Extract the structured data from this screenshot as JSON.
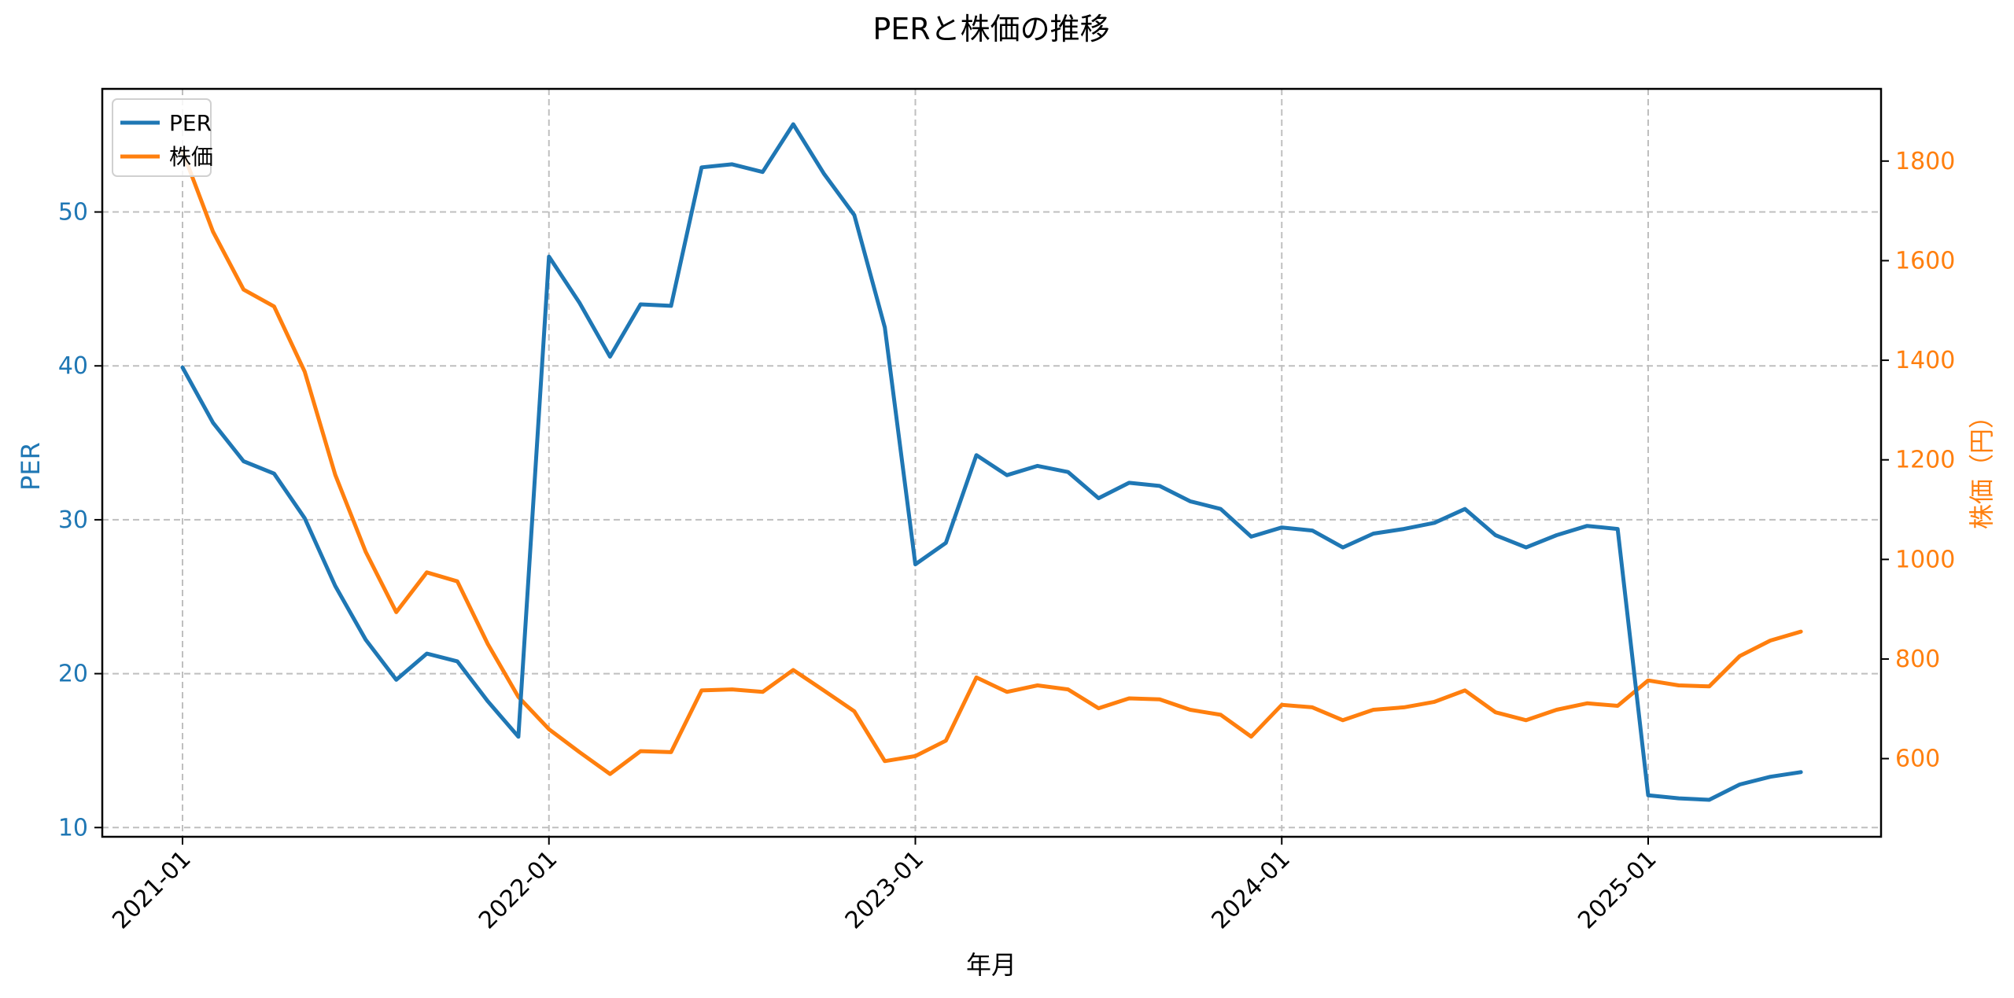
{
  "chart_data": {
    "type": "line",
    "title": "PERと株価の推移",
    "xlabel": "年月",
    "ylabel_left": "PER",
    "ylabel_right": "株価（円）",
    "x_ticks": [
      "2021-01",
      "2022-01",
      "2023-01",
      "2024-01",
      "2025-01"
    ],
    "y_left_ticks": [
      10,
      20,
      30,
      40,
      50
    ],
    "y_right_ticks": [
      600,
      800,
      1000,
      1200,
      1400,
      1600,
      1800
    ],
    "y_left_range": [
      9.4,
      58.0
    ],
    "y_right_range": [
      443,
      1945
    ],
    "grid": true,
    "legend_position": "upper left",
    "x": [
      "2021-01",
      "2021-02",
      "2021-03",
      "2021-04",
      "2021-05",
      "2021-06",
      "2021-07",
      "2021-08",
      "2021-09",
      "2021-10",
      "2021-11",
      "2021-12",
      "2022-01",
      "2022-02",
      "2022-03",
      "2022-04",
      "2022-05",
      "2022-06",
      "2022-07",
      "2022-08",
      "2022-09",
      "2022-10",
      "2022-11",
      "2022-12",
      "2023-01",
      "2023-02",
      "2023-03",
      "2023-04",
      "2023-05",
      "2023-06",
      "2023-07",
      "2023-08",
      "2023-09",
      "2023-10",
      "2023-11",
      "2023-12",
      "2024-01",
      "2024-02",
      "2024-03",
      "2024-04",
      "2024-05",
      "2024-06",
      "2024-07",
      "2024-08",
      "2024-09",
      "2024-10",
      "2024-11",
      "2024-12",
      "2025-01",
      "2025-02",
      "2025-03",
      "2025-04",
      "2025-05",
      "2025-06"
    ],
    "series": [
      {
        "name": "PER",
        "axis": "left",
        "color": "#1f77b4",
        "values": [
          39.9,
          36.3,
          33.8,
          33.0,
          30.1,
          25.7,
          22.2,
          19.6,
          21.3,
          20.8,
          18.2,
          15.9,
          47.1,
          44.1,
          40.6,
          44.0,
          43.9,
          52.9,
          53.1,
          52.6,
          55.7,
          52.5,
          49.8,
          42.5,
          27.1,
          28.5,
          34.2,
          32.9,
          33.5,
          33.1,
          31.4,
          32.4,
          32.2,
          31.2,
          30.7,
          28.9,
          29.5,
          29.3,
          28.2,
          29.1,
          29.4,
          29.8,
          30.7,
          29.0,
          28.2,
          29.0,
          29.6,
          29.4,
          12.1,
          11.9,
          11.8,
          12.8,
          13.3,
          13.6
        ]
      },
      {
        "name": "株価",
        "axis": "right",
        "color": "#ff7f0e",
        "values": [
          1820,
          1658,
          1542,
          1508,
          1377,
          1170,
          1015,
          894,
          974,
          956,
          830,
          724,
          659,
          613,
          569,
          615,
          613,
          737,
          739,
          734,
          778,
          737,
          695,
          595,
          605,
          636,
          763,
          734,
          747,
          739,
          701,
          721,
          719,
          698,
          688,
          644,
          708,
          703,
          677,
          698,
          703,
          714,
          737,
          693,
          677,
          698,
          711,
          706,
          757,
          747,
          745,
          806,
          837,
          855
        ]
      }
    ]
  },
  "legend": {
    "items": [
      {
        "label": "PER",
        "color": "#1f77b4"
      },
      {
        "label": "株価",
        "color": "#ff7f0e"
      }
    ]
  }
}
